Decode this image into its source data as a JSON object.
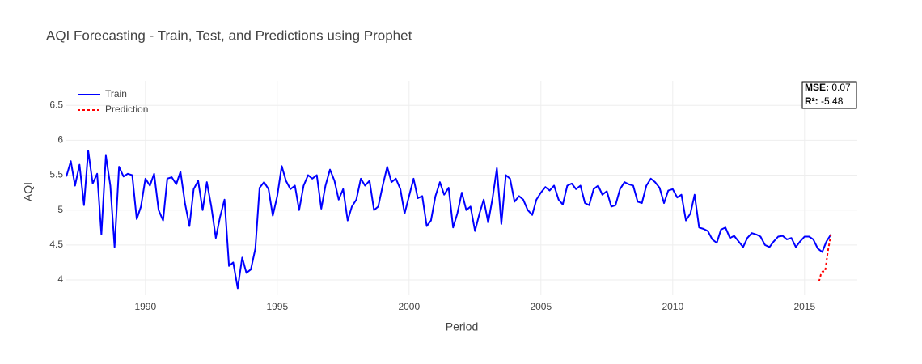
{
  "chart_data": {
    "type": "line",
    "title": "AQI Forecasting - Train, Test, and Predictions using Prophet",
    "x_label": "Period",
    "y_label": "AQI",
    "xlim": [
      1987.0,
      2017.0
    ],
    "ylim": [
      3.78,
      6.85
    ],
    "xticks": [
      1990,
      1995,
      2000,
      2005,
      2010,
      2015
    ],
    "yticks": [
      4,
      4.5,
      5,
      5.5,
      6,
      6.5
    ],
    "grid": true,
    "legend": "top-left",
    "series": [
      {
        "name": "Train",
        "color": "#0000ff",
        "dash": "solid",
        "x": [
          1987,
          1987.17,
          1987.33,
          1987.5,
          1987.67,
          1987.83,
          1988,
          1988.17,
          1988.33,
          1988.5,
          1988.67,
          1988.83,
          1989,
          1989.17,
          1989.33,
          1989.5,
          1989.67,
          1989.83,
          1990,
          1990.17,
          1990.33,
          1990.5,
          1990.67,
          1990.83,
          1991,
          1991.17,
          1991.33,
          1991.5,
          1991.67,
          1991.83,
          1992,
          1992.17,
          1992.33,
          1992.5,
          1992.67,
          1992.83,
          1993,
          1993.17,
          1993.33,
          1993.5,
          1993.67,
          1993.83,
          1994,
          1994.17,
          1994.33,
          1994.5,
          1994.67,
          1994.83,
          1995,
          1995.17,
          1995.33,
          1995.5,
          1995.67,
          1995.83,
          1996,
          1996.17,
          1996.33,
          1996.5,
          1996.67,
          1996.83,
          1997,
          1997.17,
          1997.33,
          1997.5,
          1997.67,
          1997.83,
          1998,
          1998.17,
          1998.33,
          1998.5,
          1998.67,
          1998.83,
          1999,
          1999.17,
          1999.33,
          1999.5,
          1999.67,
          1999.83,
          2000,
          2000.17,
          2000.33,
          2000.5,
          2000.67,
          2000.83,
          2001,
          2001.17,
          2001.33,
          2001.5,
          2001.67,
          2001.83,
          2002,
          2002.17,
          2002.33,
          2002.5,
          2002.67,
          2002.83,
          2003,
          2003.17,
          2003.33,
          2003.5,
          2003.67,
          2003.83,
          2004,
          2004.17,
          2004.33,
          2004.5,
          2004.67,
          2004.83,
          2005,
          2005.17,
          2005.33,
          2005.5,
          2005.67,
          2005.83,
          2006,
          2006.17,
          2006.33,
          2006.5,
          2006.67,
          2006.83,
          2007,
          2007.17,
          2007.33,
          2007.5,
          2007.67,
          2007.83,
          2008,
          2008.17,
          2008.33,
          2008.5,
          2008.67,
          2008.83,
          2009,
          2009.17,
          2009.33,
          2009.5,
          2009.67,
          2009.83,
          2010,
          2010.17,
          2010.33,
          2010.5,
          2010.67,
          2010.83,
          2011,
          2011.17,
          2011.33,
          2011.5,
          2011.67,
          2011.83,
          2012,
          2012.17,
          2012.33,
          2012.5,
          2012.67,
          2012.83,
          2013,
          2013.17,
          2013.33,
          2013.5,
          2013.67,
          2013.83,
          2014,
          2014.17,
          2014.33,
          2014.5,
          2014.67,
          2014.83,
          2015,
          2015.17,
          2015.33,
          2015.5,
          2015.67,
          2015.83,
          2016
        ],
        "values": [
          5.48,
          5.7,
          5.35,
          5.65,
          5.07,
          5.85,
          5.38,
          5.52,
          4.65,
          5.78,
          5.35,
          4.47,
          5.62,
          5.48,
          5.52,
          5.5,
          4.87,
          5.05,
          5.45,
          5.35,
          5.52,
          5.0,
          4.85,
          5.45,
          5.47,
          5.37,
          5.55,
          5.1,
          4.77,
          5.3,
          5.42,
          5.0,
          5.4,
          5.05,
          4.6,
          4.9,
          5.15,
          4.2,
          4.25,
          3.88,
          4.32,
          4.1,
          4.15,
          4.45,
          5.32,
          5.4,
          5.3,
          4.92,
          5.2,
          5.63,
          5.42,
          5.3,
          5.35,
          5.0,
          5.35,
          5.5,
          5.45,
          5.5,
          5.02,
          5.35,
          5.58,
          5.42,
          5.15,
          5.3,
          4.85,
          5.05,
          5.15,
          5.45,
          5.35,
          5.42,
          5.0,
          5.05,
          5.35,
          5.62,
          5.4,
          5.45,
          5.3,
          4.95,
          5.2,
          5.45,
          5.17,
          5.2,
          4.77,
          4.85,
          5.2,
          5.4,
          5.22,
          5.32,
          4.75,
          4.95,
          5.25,
          5.0,
          5.05,
          4.7,
          4.95,
          5.15,
          4.82,
          5.18,
          5.6,
          4.8,
          5.5,
          5.45,
          5.12,
          5.2,
          5.15,
          5.0,
          4.93,
          5.15,
          5.25,
          5.33,
          5.28,
          5.35,
          5.15,
          5.08,
          5.35,
          5.38,
          5.3,
          5.35,
          5.1,
          5.07,
          5.3,
          5.35,
          5.22,
          5.27,
          5.05,
          5.07,
          5.3,
          5.4,
          5.37,
          5.35,
          5.12,
          5.1,
          5.35,
          5.45,
          5.4,
          5.32,
          5.1,
          5.28,
          5.3,
          5.18,
          5.22,
          4.85,
          4.95,
          5.22,
          4.75,
          4.73,
          4.7,
          4.58,
          4.53,
          4.72,
          4.75,
          4.6,
          4.63,
          4.55,
          4.47,
          4.6,
          4.67,
          4.65,
          4.62,
          4.5,
          4.47,
          4.55,
          4.62,
          4.63,
          4.58,
          4.6,
          4.47,
          4.55,
          4.62,
          4.62,
          4.58,
          4.45,
          4.4,
          4.55,
          4.65
        ]
      },
      {
        "name": "Prediction",
        "color": "#ff0000",
        "dash": "dot",
        "x": [
          2015.55,
          2015.62,
          2015.68,
          2015.78,
          2015.88,
          2016.0
        ],
        "values": [
          3.98,
          4.08,
          4.12,
          4.12,
          4.4,
          4.65
        ]
      }
    ],
    "annotations": [
      {
        "label": "MSE:",
        "value": 0.07
      },
      {
        "label": "R²:",
        "value": -5.48
      }
    ]
  }
}
